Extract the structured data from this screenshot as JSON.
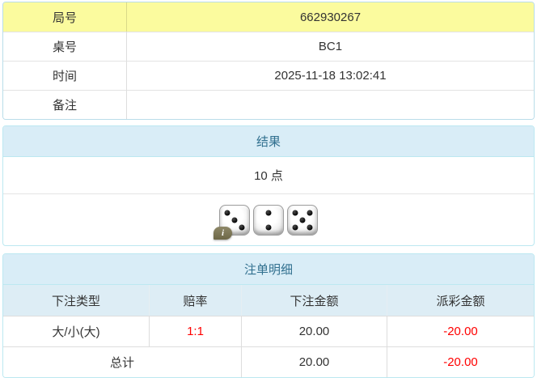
{
  "info_table": {
    "rows": [
      {
        "label": "局号",
        "value": "662930267",
        "highlight": true
      },
      {
        "label": "桌号",
        "value": "BC1",
        "highlight": false
      },
      {
        "label": "时间",
        "value": "2025-11-18 13:02:41",
        "highlight": false
      },
      {
        "label": "备注",
        "value": "",
        "highlight": false
      }
    ]
  },
  "result_panel": {
    "title": "结果",
    "points": "10 点",
    "dice": [
      3,
      2,
      5
    ],
    "dice_total": 10,
    "info_badge": "i"
  },
  "bets_panel": {
    "title": "注单明细",
    "columns": [
      "下注类型",
      "赔率",
      "下注金额",
      "派彩金额"
    ],
    "rows": [
      {
        "type": "大/小(大)",
        "odds": "1:1",
        "amount": "20.00",
        "payout": "-20.00"
      }
    ],
    "total": {
      "label": "总计",
      "amount": "20.00",
      "payout": "-20.00"
    }
  },
  "colors": {
    "highlight_yellow": "#fbfb9e",
    "panel_header_bg": "#d9edf7",
    "panel_header_text": "#31708f",
    "panel_border": "#bce8f1",
    "column_header_bg": "#ddedf5",
    "negative_red": "#ff0000"
  }
}
